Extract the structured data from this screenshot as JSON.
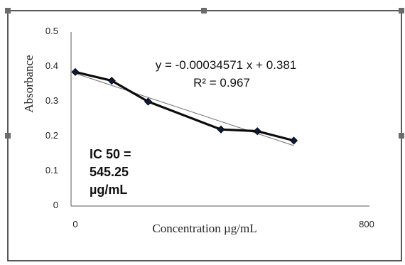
{
  "chart_data": {
    "type": "line",
    "title": "",
    "xlabel": "Concentration µg/mL",
    "ylabel": "Absorbance",
    "xlim": [
      0,
      800
    ],
    "ylim": [
      0,
      0.5
    ],
    "x_ticks": [
      "0",
      "800"
    ],
    "y_ticks": [
      "0",
      "0.1",
      "0.2",
      "0.3",
      "0.4",
      "0.5"
    ],
    "series": [
      {
        "x": [
          0,
          100,
          200,
          400,
          500,
          600
        ],
        "values": [
          0.385,
          0.36,
          0.3,
          0.22,
          0.215,
          0.188
        ]
      }
    ],
    "trendline": {
      "slope": -0.00034571,
      "intercept": 0.381
    },
    "annotations": {
      "equation": "y = -0.00034571 x + 0.381",
      "r_squared": "R² = 0.967",
      "ic50_line1": "IC 50 =",
      "ic50_line2": "545.25",
      "ic50_line3": "µg/mL"
    },
    "grid": false,
    "legend": "none"
  }
}
